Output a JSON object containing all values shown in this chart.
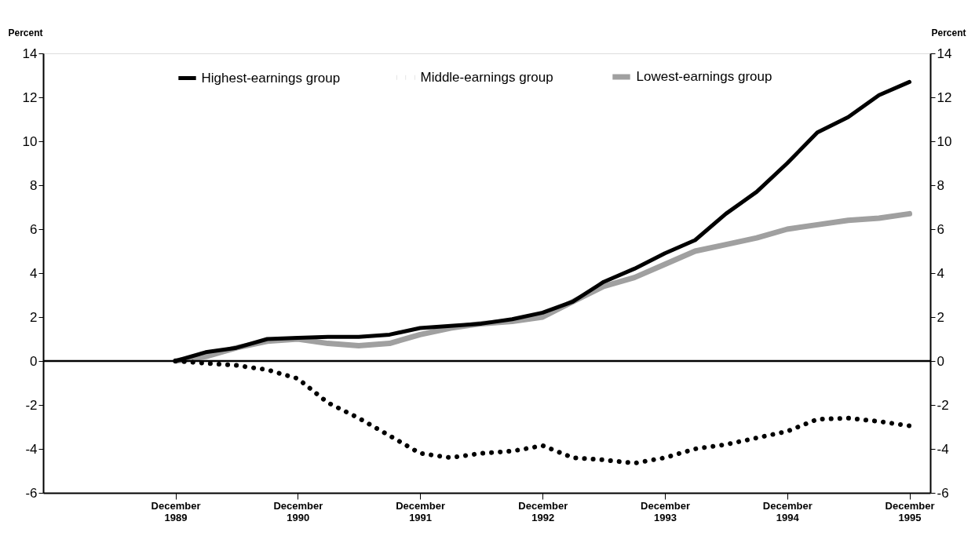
{
  "chart_data": {
    "type": "line",
    "ylabel": "Percent",
    "y2label": "Percent",
    "x": [
      "1989-12",
      "1990-03",
      "1990-06",
      "1990-09",
      "1990-12",
      "1991-03",
      "1991-06",
      "1991-09",
      "1991-12",
      "1992-03",
      "1992-06",
      "1992-09",
      "1992-12",
      "1993-03",
      "1993-06",
      "1993-09",
      "1993-12",
      "1994-03",
      "1994-06",
      "1994-09",
      "1994-12",
      "1995-03",
      "1995-06",
      "1995-09",
      "1995-12"
    ],
    "series": [
      {
        "name": "Highest-earnings group",
        "color": "#000000",
        "line_style": "solid",
        "values": [
          0,
          0.4,
          0.6,
          1.0,
          1.05,
          1.1,
          1.1,
          1.2,
          1.5,
          1.6,
          1.7,
          1.9,
          2.2,
          2.7,
          3.6,
          4.2,
          4.9,
          5.5,
          6.7,
          7.7,
          9.0,
          10.4,
          11.1,
          12.1,
          12.7
        ]
      },
      {
        "name": "Middle-earnings group",
        "color": "#000000",
        "line_style": "dotted",
        "values": [
          0,
          -0.1,
          -0.2,
          -0.4,
          -0.8,
          -1.9,
          -2.6,
          -3.4,
          -4.2,
          -4.4,
          -4.2,
          -4.1,
          -3.85,
          -4.4,
          -4.5,
          -4.65,
          -4.4,
          -4.0,
          -3.8,
          -3.5,
          -3.2,
          -2.65,
          -2.6,
          -2.75,
          -2.95
        ]
      },
      {
        "name": "Lowest-earnings group",
        "color": "#a0a0a0",
        "line_style": "solid",
        "values": [
          0,
          0.2,
          0.6,
          0.9,
          1.0,
          0.8,
          0.7,
          0.8,
          1.2,
          1.5,
          1.7,
          1.8,
          2.0,
          2.7,
          3.4,
          3.8,
          4.4,
          5.0,
          5.3,
          5.6,
          6.0,
          6.2,
          6.4,
          6.5,
          6.7
        ]
      }
    ],
    "xlim": [
      "1988-11",
      "1996-02"
    ],
    "xticks": [
      {
        "value": "1989-12",
        "label": "December 1989"
      },
      {
        "value": "1990-12",
        "label": "December 1990"
      },
      {
        "value": "1991-12",
        "label": "December 1991"
      },
      {
        "value": "1992-12",
        "label": "December 1992"
      },
      {
        "value": "1993-12",
        "label": "December 1993"
      },
      {
        "value": "1994-12",
        "label": "December 1994"
      },
      {
        "value": "1995-12",
        "label": "December 1995"
      }
    ],
    "ylim": [
      -6,
      14
    ],
    "yticks": [
      -6,
      -4,
      -2,
      0,
      2,
      4,
      6,
      8,
      10,
      12,
      14
    ],
    "y2lim": [
      -6,
      14
    ],
    "y2ticks": [
      -6,
      -4,
      -2,
      0,
      2,
      4,
      6,
      8,
      10,
      12,
      14
    ],
    "ref_lines": [
      {
        "axis": "y",
        "value": 0,
        "color": "#000000",
        "line_style": "solid"
      }
    ],
    "legend": "top",
    "grid": false
  }
}
